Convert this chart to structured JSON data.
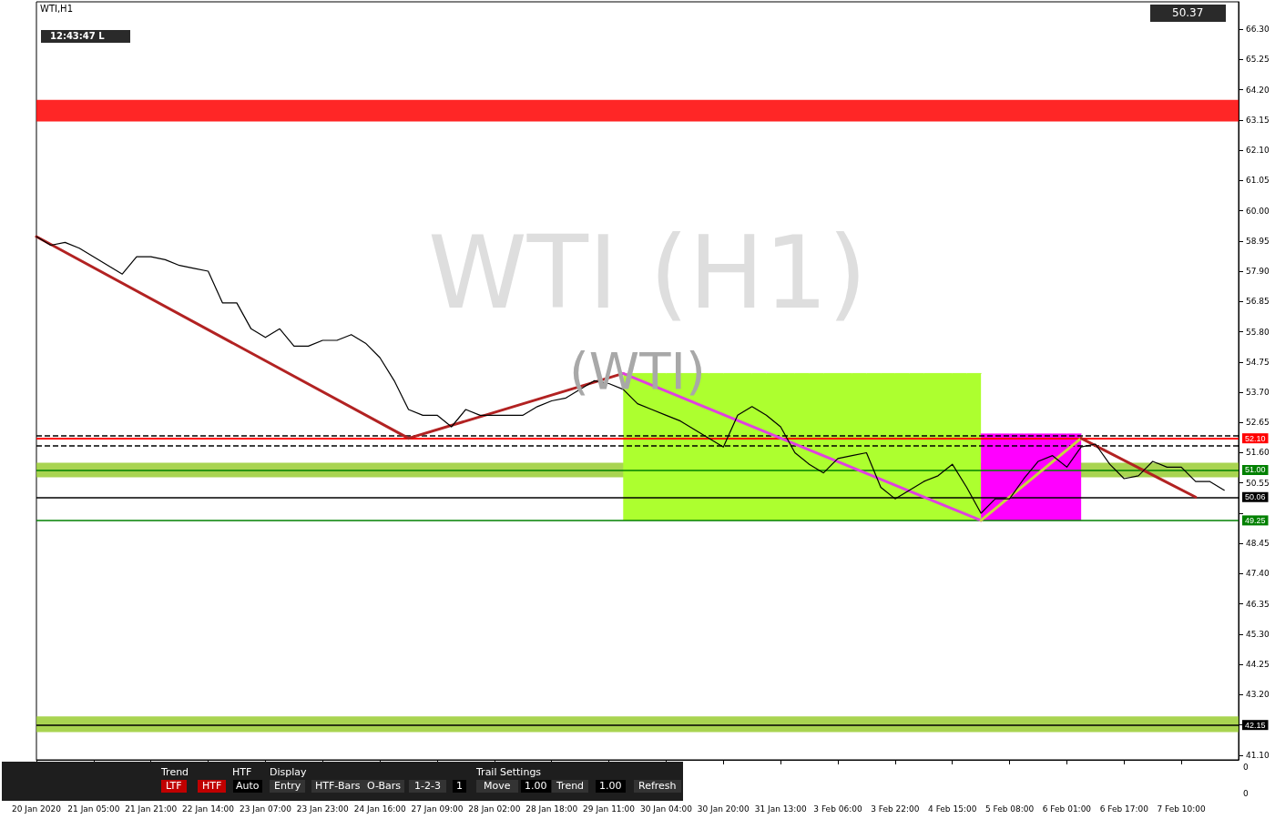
{
  "chart_data": {
    "type": "line",
    "title": "WTI,H1",
    "categories": [
      "20 Jan 2020",
      null,
      null,
      null,
      "21 Jan 05:00",
      null,
      null,
      null,
      "21 Jan 21:00",
      null,
      null,
      null,
      "22 Jan 14:00",
      null,
      null,
      null,
      "23 Jan 07:00",
      null,
      null,
      null,
      "23 Jan 23:00",
      null,
      null,
      null,
      "24 Jan 16:00",
      null,
      null,
      null,
      "27 Jan 09:00",
      null,
      null,
      null,
      "28 Jan 02:00",
      null,
      null,
      null,
      "28 Jan 18:00",
      null,
      null,
      null,
      "29 Jan 11:00",
      null,
      null,
      null,
      "30 Jan 04:00",
      null,
      null,
      null,
      "30 Jan 20:00",
      null,
      null,
      null,
      "31 Jan 13:00",
      null,
      null,
      null,
      "3 Feb 06:00",
      null,
      null,
      null,
      "3 Feb 22:00",
      null,
      null,
      null,
      "4 Feb 15:00",
      null,
      null,
      null,
      "5 Feb 08:00",
      null,
      null,
      null,
      "6 Feb 01:00",
      null,
      null,
      null,
      "6 Feb 17:00",
      null,
      null,
      null,
      "7 Feb 10:00",
      null,
      null,
      null,
      null
    ],
    "series": [
      {
        "color": "#000000",
        "values": [
          59.1,
          58.8,
          58.9,
          58.7,
          58.4,
          58.1,
          57.8,
          58.4,
          58.4,
          58.3,
          58.1,
          58.0,
          57.9,
          56.8,
          56.8,
          55.9,
          55.6,
          55.9,
          55.3,
          55.3,
          55.5,
          55.5,
          55.7,
          55.4,
          54.9,
          54.1,
          53.1,
          52.9,
          52.9,
          52.5,
          53.1,
          52.9,
          52.9,
          52.9,
          52.9,
          53.2,
          53.4,
          53.5,
          53.8,
          54.1,
          54.0,
          53.8,
          53.3,
          53.1,
          52.9,
          52.7,
          52.4,
          52.1,
          51.8,
          52.9,
          53.2,
          52.9,
          52.5,
          51.6,
          51.2,
          50.9,
          51.4,
          51.5,
          51.6,
          50.4,
          50.0,
          50.3,
          50.6,
          50.8,
          51.2,
          50.4,
          49.5,
          50.0,
          50.0,
          50.7,
          51.3,
          51.5,
          51.1,
          51.8,
          51.9,
          51.2,
          50.7,
          50.8,
          51.3,
          51.1,
          51.1,
          50.6,
          50.6,
          50.3,
          null
        ]
      },
      {
        "color": "#adff2f",
        "values": [
          null,
          null,
          null,
          null,
          null,
          null,
          null,
          null,
          null,
          null,
          null,
          null,
          null,
          null,
          null,
          null,
          null,
          null,
          null,
          null,
          null,
          null,
          null,
          null,
          null,
          null,
          null,
          null,
          null,
          null,
          null,
          null,
          null,
          null,
          null,
          null,
          null,
          null,
          null,
          null,
          null,
          54.35,
          54.35,
          54.35,
          54.35,
          54.35,
          54.35,
          54.35,
          54.35,
          54.35,
          54.35,
          54.35,
          54.35,
          54.35,
          54.35,
          54.35,
          54.35,
          54.35,
          54.35,
          54.35,
          54.35,
          54.35,
          54.35,
          54.35,
          54.35,
          54.35,
          54.35,
          null,
          null,
          null,
          null,
          null,
          null,
          null,
          null,
          null,
          null,
          null,
          null,
          null,
          null,
          null,
          null,
          null,
          null
        ],
        "lower": [
          null,
          null,
          null,
          null,
          null,
          null,
          null,
          null,
          null,
          null,
          null,
          null,
          null,
          null,
          null,
          null,
          null,
          null,
          null,
          null,
          null,
          null,
          null,
          null,
          null,
          null,
          null,
          null,
          null,
          null,
          null,
          null,
          null,
          null,
          null,
          null,
          null,
          null,
          null,
          null,
          null,
          49.25,
          49.25,
          49.25,
          49.25,
          49.25,
          49.25,
          49.25,
          49.25,
          49.25,
          49.25,
          49.25,
          49.25,
          49.25,
          49.25,
          49.25,
          49.25,
          49.25,
          49.25,
          49.25,
          49.25,
          49.25,
          49.25,
          49.25,
          49.25,
          49.25,
          49.25,
          null,
          null,
          null,
          null,
          null,
          null,
          null,
          null,
          null,
          null,
          null,
          null,
          null,
          null,
          null,
          null,
          null,
          null
        ],
        "upper": [
          null,
          null,
          null,
          null,
          null,
          null,
          null,
          null,
          null,
          null,
          null,
          null,
          null,
          null,
          null,
          null,
          null,
          null,
          null,
          null,
          null,
          null,
          null,
          null,
          null,
          null,
          null,
          null,
          null,
          null,
          null,
          null,
          null,
          null,
          null,
          null,
          null,
          null,
          null,
          null,
          null,
          54.35,
          54.35,
          54.35,
          54.35,
          54.35,
          54.35,
          54.35,
          54.35,
          54.35,
          54.35,
          54.35,
          54.35,
          54.35,
          54.35,
          54.35,
          54.35,
          54.35,
          54.35,
          54.35,
          54.35,
          54.35,
          54.35,
          54.35,
          54.35,
          54.35,
          54.35,
          null,
          null,
          null,
          null,
          null,
          null,
          null,
          null,
          null,
          null,
          null,
          null,
          null,
          null,
          null,
          null,
          null,
          null
        ]
      },
      {
        "color": "#ff00ff",
        "values": [
          null,
          null,
          null,
          null,
          null,
          null,
          null,
          null,
          null,
          null,
          null,
          null,
          null,
          null,
          null,
          null,
          null,
          null,
          null,
          null,
          null,
          null,
          null,
          null,
          null,
          null,
          null,
          null,
          null,
          null,
          null,
          null,
          null,
          null,
          null,
          null,
          null,
          null,
          null,
          null,
          null,
          null,
          null,
          null,
          null,
          null,
          null,
          null,
          null,
          null,
          null,
          null,
          null,
          null,
          null,
          null,
          null,
          null,
          null,
          null,
          null,
          null,
          null,
          null,
          null,
          null,
          52.25,
          52.25,
          52.25,
          52.25,
          52.25,
          52.25,
          52.25,
          52.25,
          null,
          null,
          null,
          null,
          null,
          null,
          null,
          null,
          null,
          null,
          null
        ],
        "lower": [
          null,
          null,
          null,
          null,
          null,
          null,
          null,
          null,
          null,
          null,
          null,
          null,
          null,
          null,
          null,
          null,
          null,
          null,
          null,
          null,
          null,
          null,
          null,
          null,
          null,
          null,
          null,
          null,
          null,
          null,
          null,
          null,
          null,
          null,
          null,
          null,
          null,
          null,
          null,
          null,
          null,
          null,
          null,
          null,
          null,
          null,
          null,
          null,
          null,
          null,
          null,
          null,
          null,
          null,
          null,
          null,
          null,
          null,
          null,
          null,
          null,
          null,
          null,
          null,
          null,
          null,
          49.25,
          49.25,
          49.25,
          49.25,
          49.25,
          49.25,
          49.25,
          49.25,
          null,
          null,
          null,
          null,
          null,
          null,
          null,
          null,
          null,
          null,
          null
        ],
        "upper": [
          null,
          null,
          null,
          null,
          null,
          null,
          null,
          null,
          null,
          null,
          null,
          null,
          null,
          null,
          null,
          null,
          null,
          null,
          null,
          null,
          null,
          null,
          null,
          null,
          null,
          null,
          null,
          null,
          null,
          null,
          null,
          null,
          null,
          null,
          null,
          null,
          null,
          null,
          null,
          null,
          null,
          null,
          null,
          null,
          null,
          null,
          null,
          null,
          null,
          null,
          null,
          null,
          null,
          null,
          null,
          null,
          null,
          null,
          null,
          null,
          null,
          null,
          null,
          null,
          null,
          null,
          52.25,
          52.25,
          52.25,
          52.25,
          52.25,
          52.25,
          52.25,
          52.25,
          null,
          null,
          null,
          null,
          null,
          null,
          null,
          null,
          null,
          null,
          null
        ]
      },
      {
        "color": "#b22222",
        "values": [
          59.1,
          null,
          null,
          null,
          null,
          null,
          null,
          null,
          null,
          null,
          null,
          null,
          null,
          null,
          null,
          null,
          null,
          null,
          null,
          null,
          null,
          null,
          null,
          null,
          null,
          null,
          52.1,
          null,
          null,
          null,
          null,
          null,
          null,
          null,
          null,
          null,
          null,
          null,
          null,
          null,
          null,
          54.35,
          null,
          null,
          null,
          null,
          null,
          null,
          null,
          null,
          null,
          null,
          null,
          null,
          null,
          null,
          null,
          null,
          null,
          null,
          null,
          null,
          null,
          null,
          null,
          null,
          null,
          null,
          null,
          null,
          null,
          null,
          null,
          null,
          null,
          null,
          null,
          null,
          null,
          null,
          null,
          null,
          null,
          null,
          null
        ]
      },
      {
        "color": "#e040e0",
        "values": [
          null,
          null,
          null,
          null,
          null,
          null,
          null,
          null,
          null,
          null,
          null,
          null,
          null,
          null,
          null,
          null,
          null,
          null,
          null,
          null,
          null,
          null,
          null,
          null,
          null,
          null,
          null,
          null,
          null,
          null,
          null,
          null,
          null,
          null,
          null,
          null,
          null,
          null,
          null,
          null,
          null,
          54.35,
          null,
          null,
          null,
          null,
          null,
          null,
          null,
          null,
          null,
          null,
          null,
          null,
          null,
          null,
          null,
          null,
          null,
          null,
          null,
          null,
          null,
          null,
          null,
          null,
          49.25,
          null,
          null,
          null,
          null,
          null,
          null,
          null,
          null,
          null,
          null,
          null,
          null,
          null,
          null,
          null,
          null,
          null,
          null
        ]
      },
      {
        "color": "#c8d640",
        "values": [
          null,
          null,
          null,
          null,
          null,
          null,
          null,
          null,
          null,
          null,
          null,
          null,
          null,
          null,
          null,
          null,
          null,
          null,
          null,
          null,
          null,
          null,
          null,
          null,
          null,
          null,
          null,
          null,
          null,
          null,
          null,
          null,
          null,
          null,
          null,
          null,
          null,
          null,
          null,
          null,
          null,
          null,
          null,
          null,
          null,
          null,
          null,
          null,
          null,
          null,
          null,
          null,
          null,
          null,
          null,
          null,
          null,
          null,
          null,
          null,
          null,
          null,
          null,
          null,
          null,
          null,
          49.25,
          null,
          null,
          null,
          null,
          null,
          null,
          52.1,
          null,
          null,
          null,
          null,
          null,
          null,
          null,
          null,
          null,
          null,
          null
        ]
      },
      {
        "color": "#b22222",
        "values": [
          null,
          null,
          null,
          null,
          null,
          null,
          null,
          null,
          null,
          null,
          null,
          null,
          null,
          null,
          null,
          null,
          null,
          null,
          null,
          null,
          null,
          null,
          null,
          null,
          null,
          null,
          null,
          null,
          null,
          null,
          null,
          null,
          null,
          null,
          null,
          null,
          null,
          null,
          null,
          null,
          null,
          null,
          null,
          null,
          null,
          null,
          null,
          null,
          null,
          null,
          null,
          null,
          null,
          null,
          null,
          null,
          null,
          null,
          null,
          null,
          null,
          null,
          null,
          null,
          null,
          null,
          null,
          null,
          null,
          null,
          null,
          null,
          null,
          52.1,
          null,
          null,
          null,
          null,
          null,
          null,
          null,
          50.06,
          null,
          null,
          null
        ]
      }
    ],
    "ylim": [
      40.94,
      67.25
    ],
    "yticks": [
      {
        "value": 41.1,
        "label": "41.10"
      },
      {
        "value": 42.15,
        "label": null
      },
      {
        "value": 43.2,
        "label": "43.20"
      },
      {
        "value": 44.25,
        "label": "44.25"
      },
      {
        "value": 45.3,
        "label": "45.30"
      },
      {
        "value": 46.35,
        "label": "46.35"
      },
      {
        "value": 47.4,
        "label": "47.40"
      },
      {
        "value": 48.45,
        "label": "48.45"
      },
      {
        "value": 49.5,
        "label": null
      },
      {
        "value": 50.55,
        "label": "50.55"
      },
      {
        "value": 51.6,
        "label": "51.60"
      },
      {
        "value": 52.65,
        "label": "52.65"
      },
      {
        "value": 53.7,
        "label": "53.70"
      },
      {
        "value": 54.75,
        "label": "54.75"
      },
      {
        "value": 55.8,
        "label": "55.80"
      },
      {
        "value": 56.85,
        "label": "56.85"
      },
      {
        "value": 57.9,
        "label": "57.90"
      },
      {
        "value": 58.95,
        "label": "58.95"
      },
      {
        "value": 60,
        "label": "60.00"
      },
      {
        "value": 61.05,
        "label": "61.05"
      },
      {
        "value": 62.1,
        "label": "62.10"
      },
      {
        "value": 63.15,
        "label": "63.15"
      },
      {
        "value": 64.2,
        "label": "64.20"
      },
      {
        "value": 65.25,
        "label": "65.25"
      },
      {
        "value": 66.3,
        "label": "66.30"
      }
    ],
    "ref_lines": [
      {
        "axis": "y",
        "value": 52.19,
        "color": "#000000",
        "line_style": "dashed"
      },
      {
        "axis": "y",
        "value": 51.84,
        "color": "#000000",
        "line_style": "dashed"
      },
      {
        "axis": "y",
        "value": 52.1,
        "label": "52.10",
        "color": "#ff0000"
      },
      {
        "axis": "y",
        "value": 51.0,
        "label": "51.00",
        "color": "#008000"
      },
      {
        "axis": "y",
        "value": 50.06,
        "label": "50.06",
        "color": "#000000"
      },
      {
        "axis": "y",
        "value": 49.25,
        "label": "49.25",
        "color": "#008000"
      },
      {
        "axis": "y",
        "value": 42.15,
        "label": "42.15",
        "color": "#000000"
      }
    ],
    "bands": [
      {
        "axis": "y",
        "from": 63.1,
        "to": 63.85,
        "color": "#ff0000"
      },
      {
        "axis": "y",
        "from": 50.75,
        "to": 51.25,
        "color": "#9acd32"
      },
      {
        "axis": "y",
        "from": 41.9,
        "to": 42.45,
        "color": "#9acd32"
      }
    ],
    "annotations": [
      "WTI (H1)",
      "(WTI)",
      "12:43:47 L",
      "50.37",
      "Trend",
      "HTF",
      "Display",
      "Trail Settings",
      "LTF",
      "HTF",
      "Auto",
      "Entry",
      "HTF-Bars",
      "O-Bars",
      "1-2-3",
      "1",
      "Move",
      "1.00",
      "Trend",
      "1.00",
      "Refresh",
      "0",
      "0"
    ]
  }
}
